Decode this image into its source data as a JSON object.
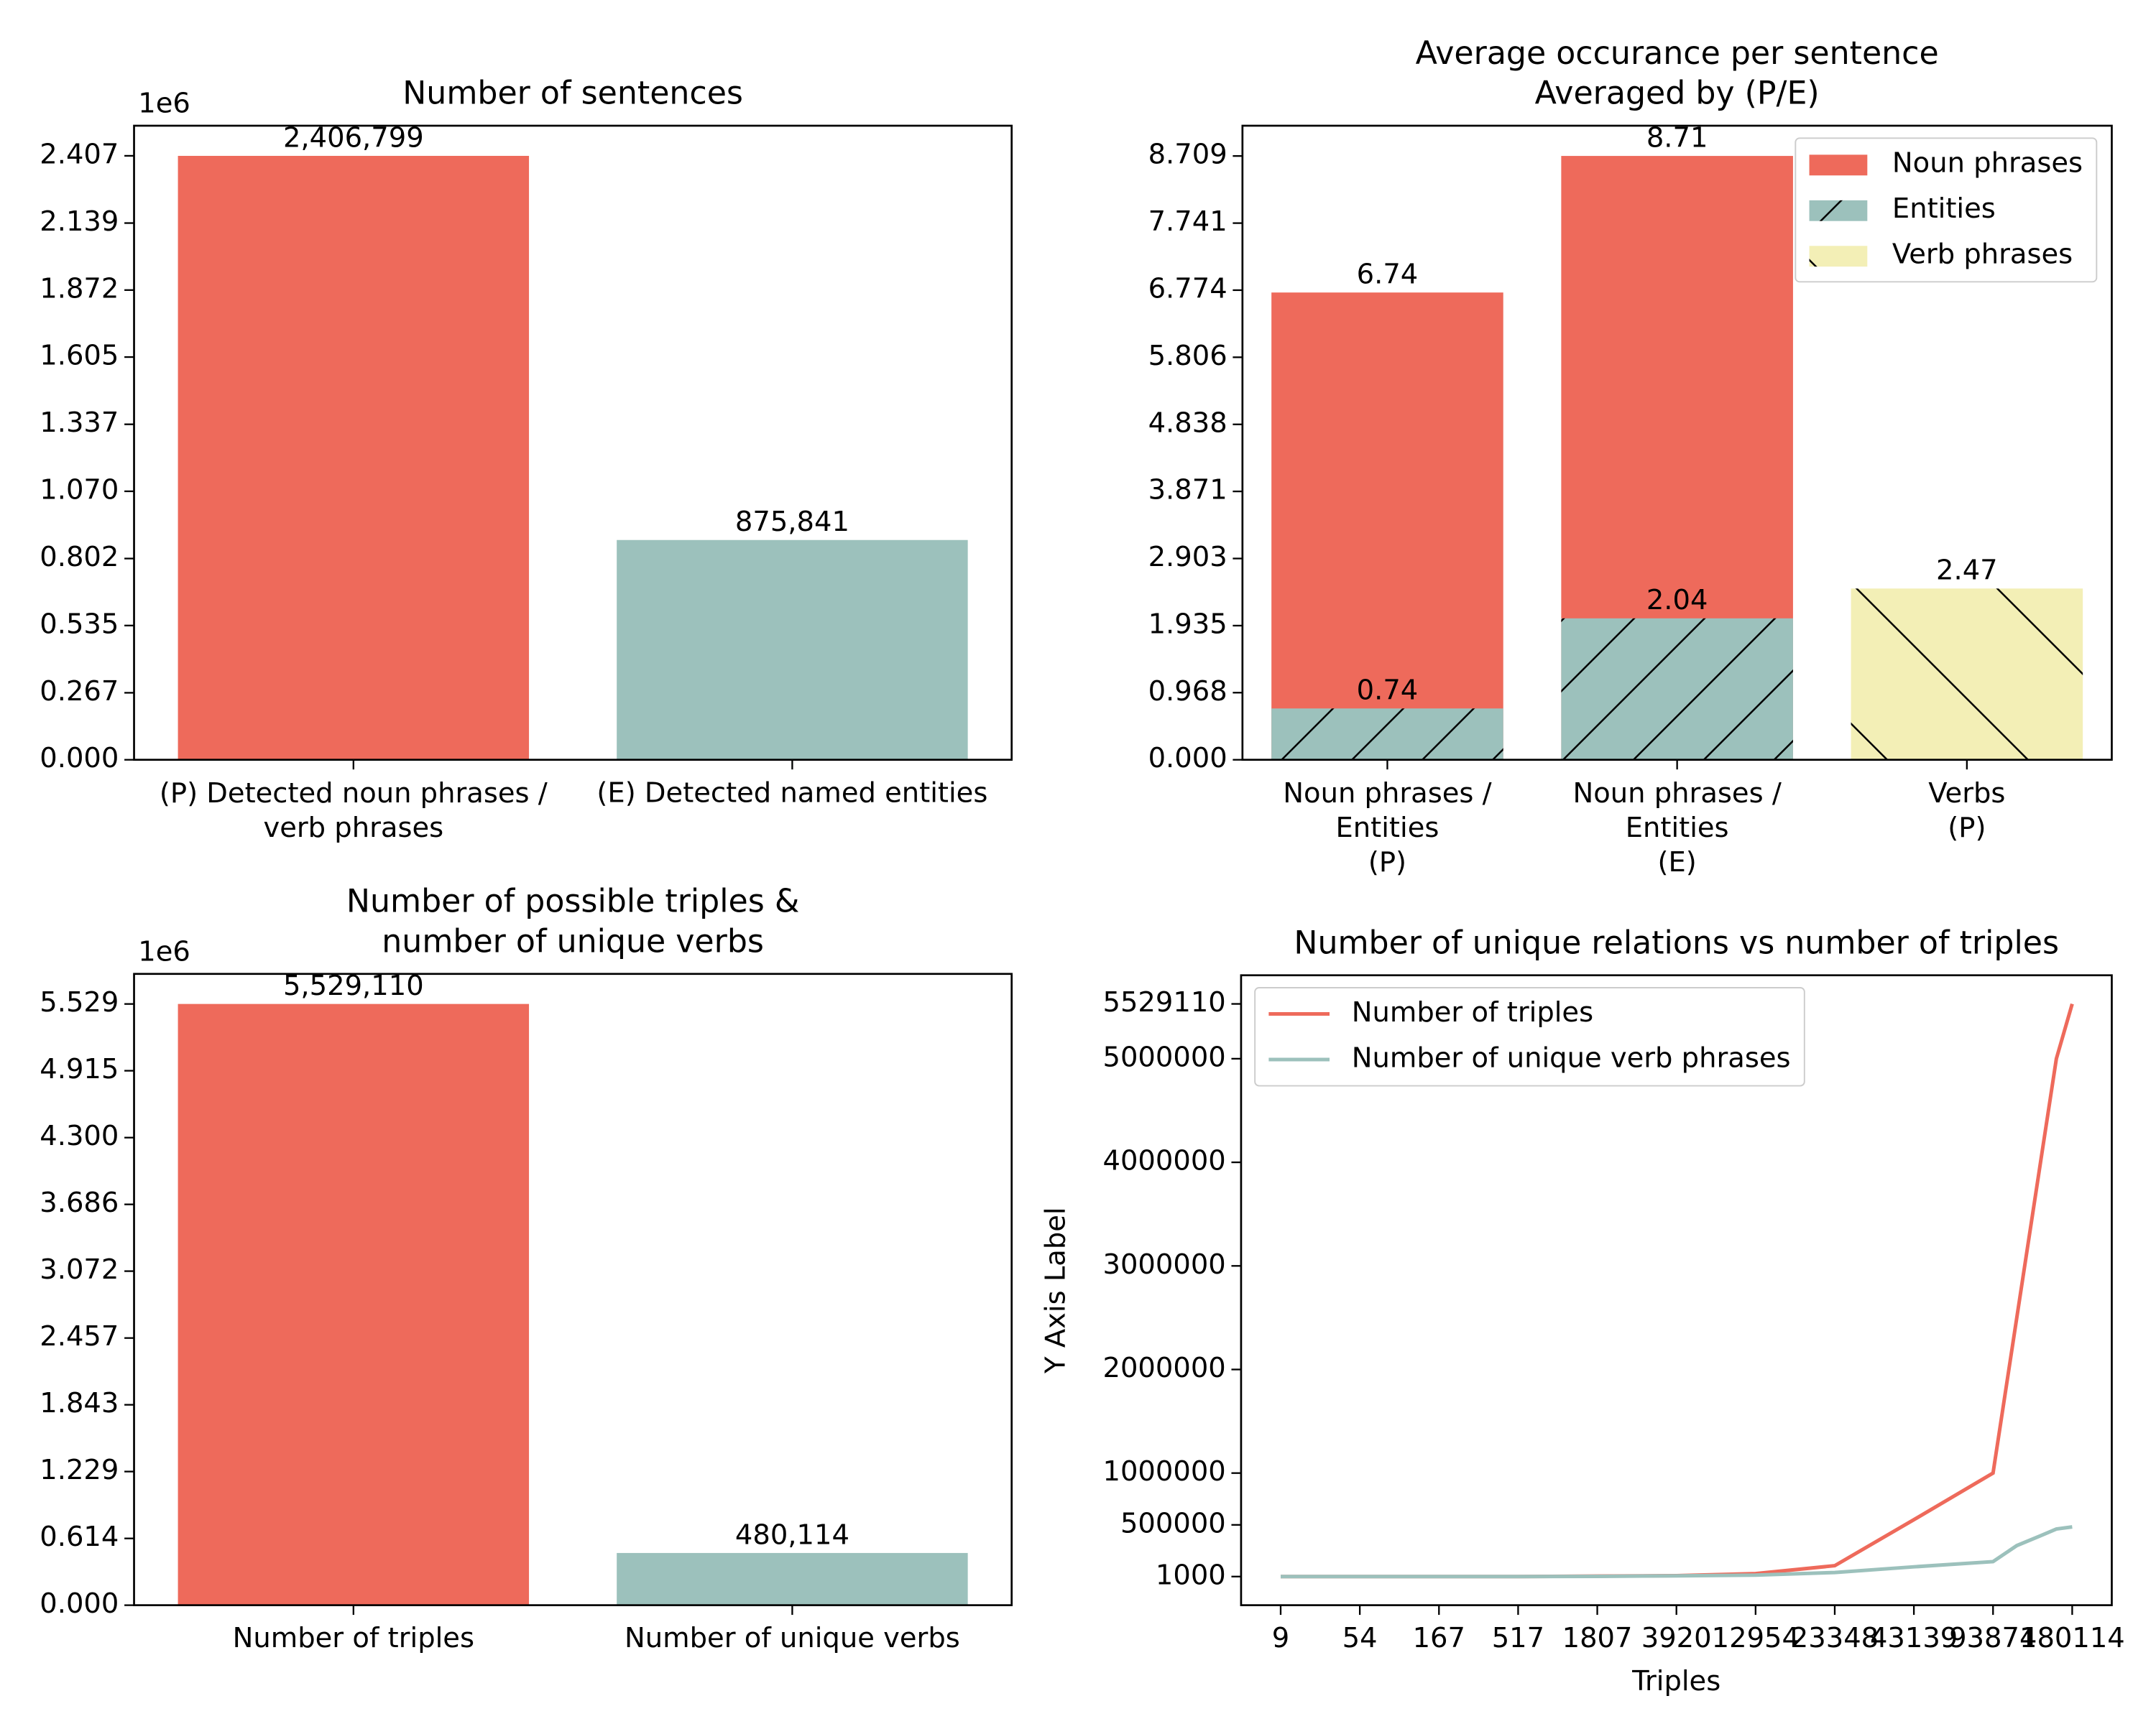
{
  "chart_data": [
    {
      "type": "bar",
      "title": "Number of sentences",
      "offset_text": "1e6",
      "categories": [
        "(P) Detected noun phrases /\nverb phrases",
        "(E) Detected named entities"
      ],
      "values": [
        2.406799,
        0.875841
      ],
      "value_labels": [
        "2,406,799",
        "875,841"
      ],
      "colors": [
        "#ee6a5b",
        "#9cc1bc"
      ],
      "ylim": [
        0,
        2.527
      ],
      "yticks": [
        {
          "value": 0,
          "label": "0.000"
        },
        0.267,
        0.535,
        0.802,
        {
          "value": 1.07,
          "label": "1.070"
        },
        1.337,
        1.605,
        1.872,
        2.139,
        2.407
      ]
    },
    {
      "type": "bar",
      "title": "Average occurance per sentence\nAveraged by (P/E)",
      "categories": [
        "Noun phrases /\nEntities\n(P)",
        "Noun phrases /\nEntities\n(E)",
        "Verbs\n(P)"
      ],
      "series": [
        {
          "name": "Noun phrases",
          "color": "#ee6a5b",
          "values": [
            6.74,
            8.71,
            null
          ]
        },
        {
          "name": "Entities",
          "color": "#9cc1bc",
          "hatch": "/",
          "values": [
            0.74,
            2.04,
            null
          ]
        },
        {
          "name": "Verb phrases",
          "color": "#f3efb6",
          "hatch": "\\",
          "values": [
            null,
            null,
            2.47
          ]
        }
      ],
      "legend": "upper right",
      "ylim": [
        0,
        9.146
      ],
      "yticks": [
        {
          "value": 0,
          "label": "0.000"
        },
        0.968,
        1.935,
        2.903,
        3.871,
        4.838,
        5.806,
        6.774,
        7.741,
        8.709
      ]
    },
    {
      "type": "bar",
      "title": "Number of possible triples &\nnumber of unique verbs",
      "offset_text": "1e6",
      "categories": [
        "Number of triples",
        "Number of unique verbs"
      ],
      "values": [
        5.52911,
        0.480114
      ],
      "value_labels": [
        "5,529,110",
        "480,114"
      ],
      "colors": [
        "#ee6a5b",
        "#9cc1bc"
      ],
      "ylim": [
        0,
        5.8056
      ],
      "yticks": [
        {
          "value": 0,
          "label": "0.000"
        },
        0.614,
        1.229,
        1.843,
        2.457,
        3.072,
        3.686,
        {
          "value": 4.3,
          "label": "4.300"
        },
        4.915,
        5.529
      ]
    },
    {
      "type": "line",
      "title": "Number of unique relations vs number of triples",
      "xlabel": "Triples",
      "ylabel": "Y Axis Label",
      "x": [
        0,
        1,
        2,
        3,
        4,
        5,
        6,
        7,
        8,
        9,
        9.3,
        9.6,
        9.8,
        10
      ],
      "series": [
        {
          "name": "Number of triples",
          "color": "#ee6a5b",
          "values": [
            1000,
            1000,
            1000,
            1000,
            5000,
            10000,
            30000,
            106000,
            550000,
            1000000,
            2500000,
            4000000,
            5000000,
            5529110
          ]
        },
        {
          "name": "Number of unique verb phrases",
          "color": "#9cc1bc",
          "values": [
            1000,
            1000,
            1000,
            1000,
            3000,
            8000,
            15000,
            40000,
            95000,
            145000,
            300000,
            395000,
            460000,
            480114
          ]
        }
      ],
      "legend": "upper left",
      "xlim": [
        -0.5,
        10.5
      ],
      "xticks": [
        {
          "value": 0,
          "label": "9"
        },
        {
          "value": 1,
          "label": "54"
        },
        {
          "value": 2,
          "label": "167"
        },
        {
          "value": 3,
          "label": "517"
        },
        {
          "value": 4,
          "label": "1807"
        },
        {
          "value": 5,
          "label": "3920"
        },
        {
          "value": 6,
          "label": "12954"
        },
        {
          "value": 7,
          "label": "23348"
        },
        {
          "value": 8,
          "label": "43139"
        },
        {
          "value": 9,
          "label": "93874"
        },
        {
          "value": 10,
          "label": "180114"
        }
      ],
      "ylim": [
        -275405,
        5805515
      ],
      "yticks": [
        1000,
        500000,
        1000000,
        2000000,
        3000000,
        4000000,
        5000000,
        5529110
      ]
    }
  ]
}
